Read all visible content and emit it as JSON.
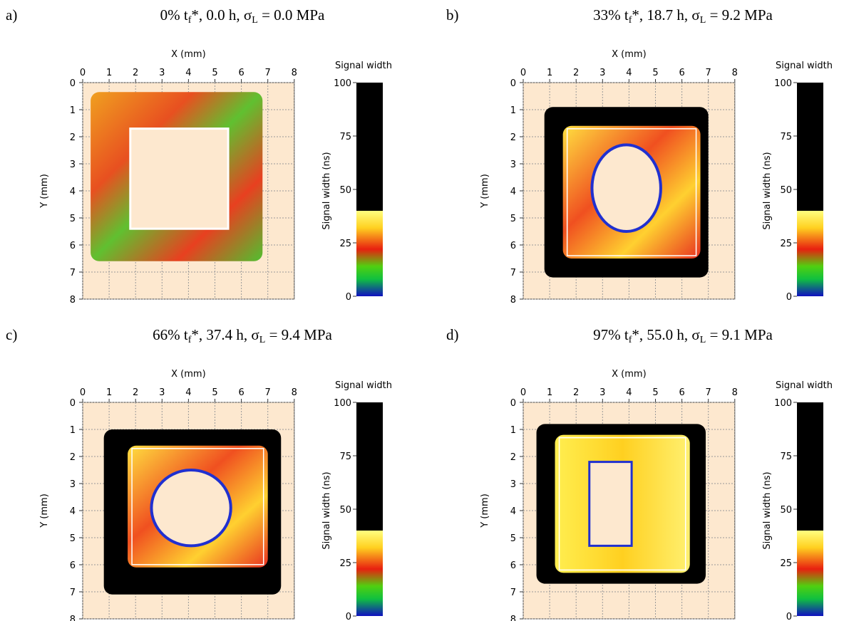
{
  "axes": {
    "x_label": "X (mm)",
    "y_label": "Y (mm)",
    "xticks": [
      0,
      1,
      2,
      3,
      4,
      5,
      6,
      7,
      8
    ],
    "yticks": [
      0,
      1,
      2,
      3,
      4,
      5,
      6,
      7,
      8
    ],
    "colorbar_title": "Signal width",
    "colorbar_label": "Signal width (ns)",
    "colorbar_ticks": [
      0,
      25,
      50,
      75,
      100
    ]
  },
  "panels": [
    {
      "letter": "a)",
      "title": [
        "0% t",
        "f",
        "*, 0.0 h, σ",
        "L",
        " = 0.0 MPa"
      ]
    },
    {
      "letter": "b)",
      "title": [
        "33% t",
        "f",
        "*, 18.7 h, σ",
        "L",
        " = 9.2 MPa"
      ]
    },
    {
      "letter": "c)",
      "title": [
        "66% t",
        "f",
        "*, 37.4 h, σ",
        "L",
        " = 9.4 MPa"
      ]
    },
    {
      "letter": "d)",
      "title": [
        "97% t",
        "f",
        "*, 55.0 h, σ",
        "L",
        " = 9.1 MPa"
      ]
    }
  ]
}
